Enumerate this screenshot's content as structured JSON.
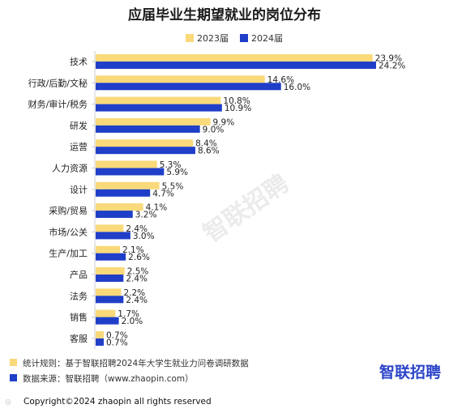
{
  "chart_data": {
    "type": "bar",
    "orientation": "horizontal",
    "title": "应届毕业生期望就业的岗位分布",
    "categories": [
      "技术",
      "行政/后勤/文秘",
      "财务/审计/税务",
      "研发",
      "运营",
      "人力资源",
      "设计",
      "采购/贸易",
      "市场/公关",
      "生产/加工",
      "产品",
      "法务",
      "销售",
      "客服"
    ],
    "series": [
      {
        "name": "2023届",
        "color": "#f9d97a",
        "values": [
          23.9,
          14.6,
          10.8,
          9.9,
          8.4,
          5.3,
          5.5,
          4.1,
          2.4,
          2.1,
          2.5,
          2.2,
          1.7,
          0.7
        ]
      },
      {
        "name": "2024届",
        "color": "#1f3fc8",
        "values": [
          24.2,
          16.0,
          10.9,
          9.0,
          8.6,
          5.9,
          4.7,
          3.2,
          3.0,
          2.6,
          2.4,
          2.4,
          2.0,
          0.7
        ]
      }
    ],
    "value_suffix": "%",
    "legend": "top-right",
    "grid": false
  },
  "footer": {
    "note1": "统计规则：基于智联招聘2024年大学生就业力问卷调研数据",
    "note2": "数据来源：智联招聘（www.zhaopin.com）",
    "brand": "智联招聘",
    "copyright": "Copyright©2024 zhaopin all rights reserved"
  },
  "colors": {
    "c2023": "#f9d97a",
    "c2024": "#1f3fc8"
  }
}
